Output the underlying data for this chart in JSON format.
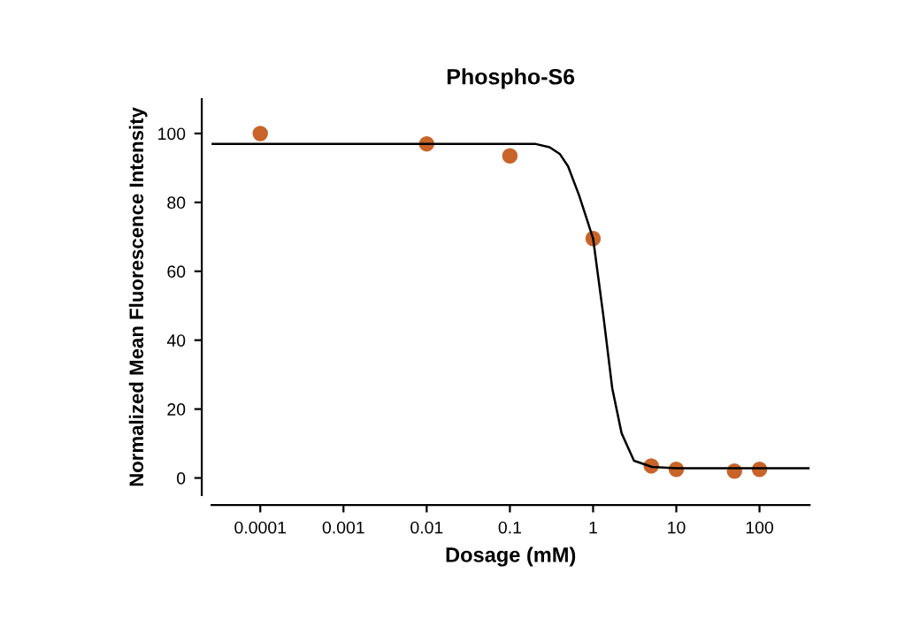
{
  "chart_data": {
    "type": "scatter",
    "title": "Phospho-S6",
    "xlabel": "Dosage (mM)",
    "ylabel": "Normalized Mean Fluorescence Intensity",
    "log": "x",
    "xlim": [
      2.6e-05,
      400
    ],
    "xticks": [
      {
        "value": 0.0001,
        "label": "0.0001"
      },
      {
        "value": 0.001,
        "label": "0.001"
      },
      {
        "value": 0.01,
        "label": "0.01"
      },
      {
        "value": 0.1,
        "label": "0.1"
      },
      {
        "value": 1,
        "label": "1"
      },
      {
        "value": 10,
        "label": "10"
      },
      {
        "value": 100,
        "label": "100"
      }
    ],
    "ylim": [
      -5,
      110
    ],
    "yticks": [
      0,
      20,
      40,
      60,
      80,
      100
    ],
    "grid": false,
    "legend": false,
    "series": [
      {
        "color": "#c8642a",
        "marker": "circle",
        "x": [
          0.0001,
          0.01,
          0.1,
          1,
          5,
          10,
          50,
          100
        ],
        "values": [
          100,
          97,
          93.5,
          69.5,
          3.5,
          2.5,
          2,
          2.5
        ]
      },
      {
        "type": "line",
        "color": "#000000",
        "line_style": "solid",
        "marker": "none",
        "x": [
          2.6e-05,
          0.2,
          0.3,
          0.4,
          0.5,
          0.68,
          1,
          1.33,
          1.7,
          2.2,
          3.1,
          5.1,
          10,
          400
        ],
        "values": [
          97,
          97,
          96,
          94,
          90.5,
          82,
          69.5,
          47,
          26,
          13,
          5,
          3.2,
          2.8,
          2.8
        ]
      }
    ]
  }
}
